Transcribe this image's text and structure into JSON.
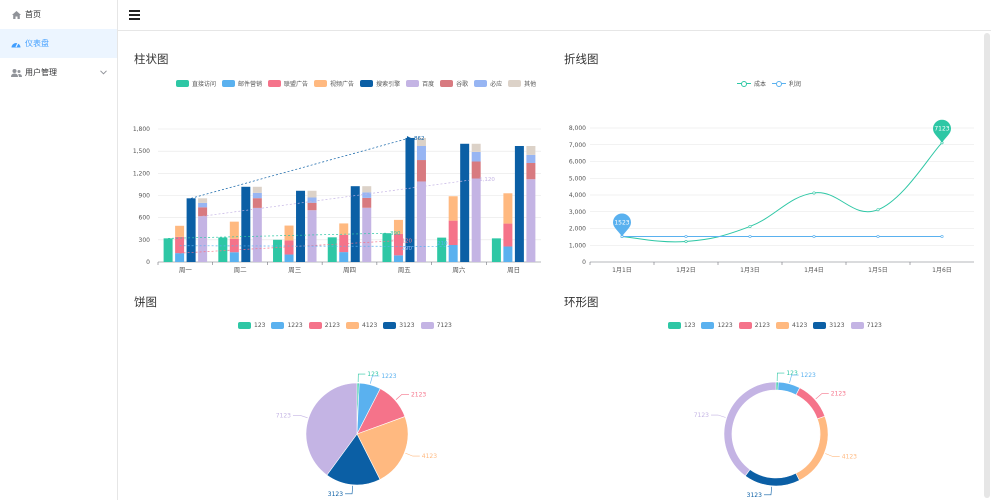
{
  "sidebar": {
    "items": [
      {
        "label": "首页",
        "icon": "home-icon",
        "active": false
      },
      {
        "label": "仪表盘",
        "icon": "dashboard-icon",
        "active": true
      },
      {
        "label": "用户管理",
        "icon": "users-icon",
        "active": false,
        "expandable": true
      }
    ]
  },
  "header": {
    "menu_icon": "hamburger-icon"
  },
  "colors": {
    "teal": "#2ec7a5",
    "blue": "#5ab1ef",
    "pink": "#f5738a",
    "orange": "#ffb980",
    "darkblue": "#0b5fa5",
    "lavender": "#c4b4e4",
    "red": "#d87a80",
    "periwinkle": "#97b5f3",
    "beige": "#dcd2c8",
    "accent": "#409eff"
  },
  "panels": {
    "bar": {
      "title": "柱状图"
    },
    "line": {
      "title": "折线图"
    },
    "pie": {
      "title": "饼图"
    },
    "ring": {
      "title": "环形图"
    }
  },
  "chart_data": [
    {
      "type": "bar",
      "title": "柱状图",
      "categories": [
        "周一",
        "周二",
        "周三",
        "周四",
        "周五",
        "周六",
        "周日"
      ],
      "ylim": [
        0,
        1800
      ],
      "yticks": [
        0,
        300,
        600,
        900,
        1200,
        1500,
        1800
      ],
      "ytick_labels": [
        "0",
        "300",
        "600",
        "900",
        "1,200",
        "1,500",
        "1,800"
      ],
      "legend": [
        "直接访问",
        "邮件营销",
        "联盟广告",
        "视频广告",
        "搜索引擎",
        "百度",
        "谷歌",
        "必应",
        "其他"
      ],
      "series": [
        {
          "name": "直接访问",
          "color": "#2ec7a5",
          "values": [
            320,
            332,
            301,
            334,
            390,
            330,
            320
          ]
        },
        {
          "name": "邮件营销",
          "color": "#5ab1ef",
          "stack": "ad",
          "values": [
            120,
            132,
            101,
            134,
            90,
            230,
            210
          ]
        },
        {
          "name": "联盟广告",
          "color": "#f5738a",
          "stack": "ad",
          "values": [
            220,
            182,
            191,
            234,
            290,
            330,
            310
          ]
        },
        {
          "name": "视频广告",
          "color": "#ffb980",
          "stack": "ad",
          "values": [
            150,
            232,
            201,
            154,
            190,
            330,
            410
          ]
        },
        {
          "name": "搜索引擎",
          "color": "#0b5fa5",
          "values": [
            862,
            1018,
            964,
            1026,
            1679,
            1600,
            1570
          ]
        },
        {
          "name": "百度",
          "color": "#c4b4e4",
          "stack": "search",
          "values": [
            620,
            732,
            701,
            734,
            1090,
            1130,
            1120
          ]
        },
        {
          "name": "谷歌",
          "color": "#d87a80",
          "stack": "search",
          "values": [
            120,
            132,
            101,
            134,
            290,
            230,
            220
          ]
        },
        {
          "name": "必应",
          "color": "#97b5f3",
          "stack": "search",
          "values": [
            60,
            72,
            71,
            74,
            190,
            130,
            110
          ]
        },
        {
          "name": "其他",
          "color": "#dcd2c8",
          "stack": "search",
          "values": [
            62,
            82,
            91,
            84,
            109,
            110,
            120
          ]
        }
      ],
      "markpoint_labels": [
        "1,679",
        "1,120"
      ],
      "markline_labels": [
        "862",
        "1,120",
        "120",
        "290",
        "210",
        "390"
      ]
    },
    {
      "type": "line",
      "title": "折线图",
      "x": [
        "1月1日",
        "1月2日",
        "1月3日",
        "1月4日",
        "1月5日",
        "1月6日"
      ],
      "ylim": [
        0,
        8000
      ],
      "yticks": [
        0,
        1000,
        2000,
        3000,
        4000,
        5000,
        6000,
        7000,
        8000
      ],
      "ytick_labels": [
        "0",
        "1,000",
        "2,000",
        "3,000",
        "4,000",
        "5,000",
        "6,000",
        "7,000",
        "8,000"
      ],
      "legend": [
        "成本",
        "利润"
      ],
      "series": [
        {
          "name": "成本",
          "color": "#2ec7a5",
          "values": [
            1523,
            1223,
            2123,
            4123,
            3123,
            7123
          ]
        },
        {
          "name": "利润",
          "color": "#5ab1ef",
          "values": [
            1523,
            1523,
            1523,
            1523,
            1523,
            1523
          ]
        }
      ],
      "markpoints": [
        {
          "series": "利润",
          "label": "1523",
          "index": 0
        },
        {
          "series": "成本",
          "label": "7123",
          "index": 5
        }
      ]
    },
    {
      "type": "pie",
      "title": "饼图",
      "legend": [
        "123",
        "1223",
        "2123",
        "4123",
        "3123",
        "7123"
      ],
      "slices": [
        {
          "name": "123",
          "value": 123,
          "color": "#2ec7a5"
        },
        {
          "name": "1223",
          "value": 1223,
          "color": "#5ab1ef"
        },
        {
          "name": "2123",
          "value": 2123,
          "color": "#f5738a"
        },
        {
          "name": "4123",
          "value": 4123,
          "color": "#ffb980"
        },
        {
          "name": "3123",
          "value": 3123,
          "color": "#0b5fa5"
        },
        {
          "name": "7123",
          "value": 7123,
          "color": "#c4b4e4"
        }
      ]
    },
    {
      "type": "pie",
      "subtype": "ring",
      "title": "环形图",
      "legend": [
        "123",
        "1223",
        "2123",
        "4123",
        "3123",
        "7123"
      ],
      "slices": [
        {
          "name": "123",
          "value": 123,
          "color": "#2ec7a5"
        },
        {
          "name": "1223",
          "value": 1223,
          "color": "#5ab1ef"
        },
        {
          "name": "2123",
          "value": 2123,
          "color": "#f5738a"
        },
        {
          "name": "4123",
          "value": 4123,
          "color": "#ffb980"
        },
        {
          "name": "3123",
          "value": 3123,
          "color": "#0b5fa5"
        },
        {
          "name": "7123",
          "value": 7123,
          "color": "#c4b4e4"
        }
      ]
    }
  ]
}
